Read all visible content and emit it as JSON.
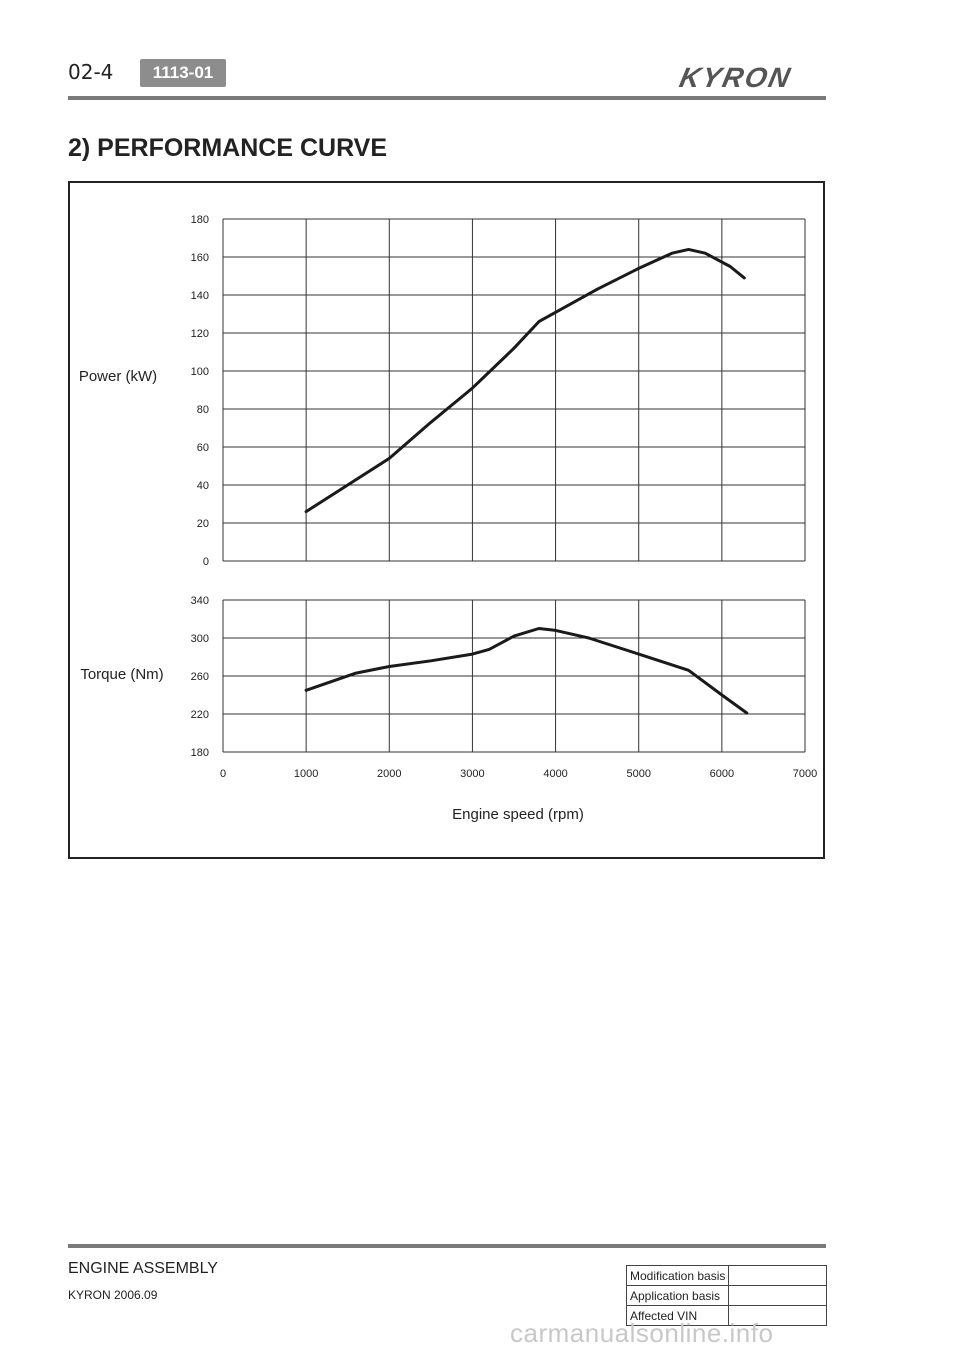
{
  "header": {
    "page_number": "02-4",
    "section_code": "1113-01",
    "brand": "KYRON"
  },
  "section_title": "2) PERFORMANCE CURVE",
  "chart_data": [
    {
      "type": "line",
      "title": "",
      "xlabel": "Engine speed (rpm)",
      "ylabel": "Power (kW)",
      "xlim": [
        0,
        7000
      ],
      "ylim": [
        0,
        180
      ],
      "x_ticks": [
        0,
        1000,
        2000,
        3000,
        4000,
        5000,
        6000,
        7000
      ],
      "y_ticks": [
        0,
        20,
        40,
        60,
        80,
        100,
        120,
        140,
        160,
        180
      ],
      "grid": true,
      "series": [
        {
          "x": [
            1000,
            1500,
            2000,
            2500,
            3000,
            3500,
            3800,
            4500,
            5000,
            5400,
            5600,
            5800,
            6100,
            6270
          ],
          "y": [
            26,
            40,
            54,
            73,
            91,
            112,
            126,
            143,
            154,
            162,
            164,
            162,
            155,
            149
          ]
        }
      ]
    },
    {
      "type": "line",
      "title": "",
      "xlabel": "Engine speed (rpm)",
      "ylabel": "Torque (Nm)",
      "xlim": [
        0,
        7000
      ],
      "ylim": [
        180,
        340
      ],
      "x_ticks": [
        0,
        1000,
        2000,
        3000,
        4000,
        5000,
        6000,
        7000
      ],
      "y_ticks": [
        180,
        220,
        260,
        300,
        340
      ],
      "grid": true,
      "series": [
        {
          "x": [
            1000,
            1600,
            2000,
            2500,
            3000,
            3200,
            3500,
            3800,
            4000,
            4400,
            5000,
            5600,
            6000,
            6300
          ],
          "y": [
            245,
            263,
            270,
            276,
            283,
            288,
            302,
            310,
            308,
            300,
            283,
            266,
            240,
            221
          ]
        }
      ]
    }
  ],
  "footer": {
    "chapter": "ENGINE ASSEMBLY",
    "model": "KYRON 2006.09",
    "revision_rows": [
      {
        "label": "Modification basis",
        "value": ""
      },
      {
        "label": "Application basis",
        "value": ""
      },
      {
        "label": "Affected VIN",
        "value": ""
      }
    ]
  },
  "watermark": "carmanualsonline.info",
  "colors": {
    "rule": "#7a7a7a",
    "badge": "#8d8d8d",
    "curve": "#1a1a1a",
    "grid": "#333333"
  }
}
